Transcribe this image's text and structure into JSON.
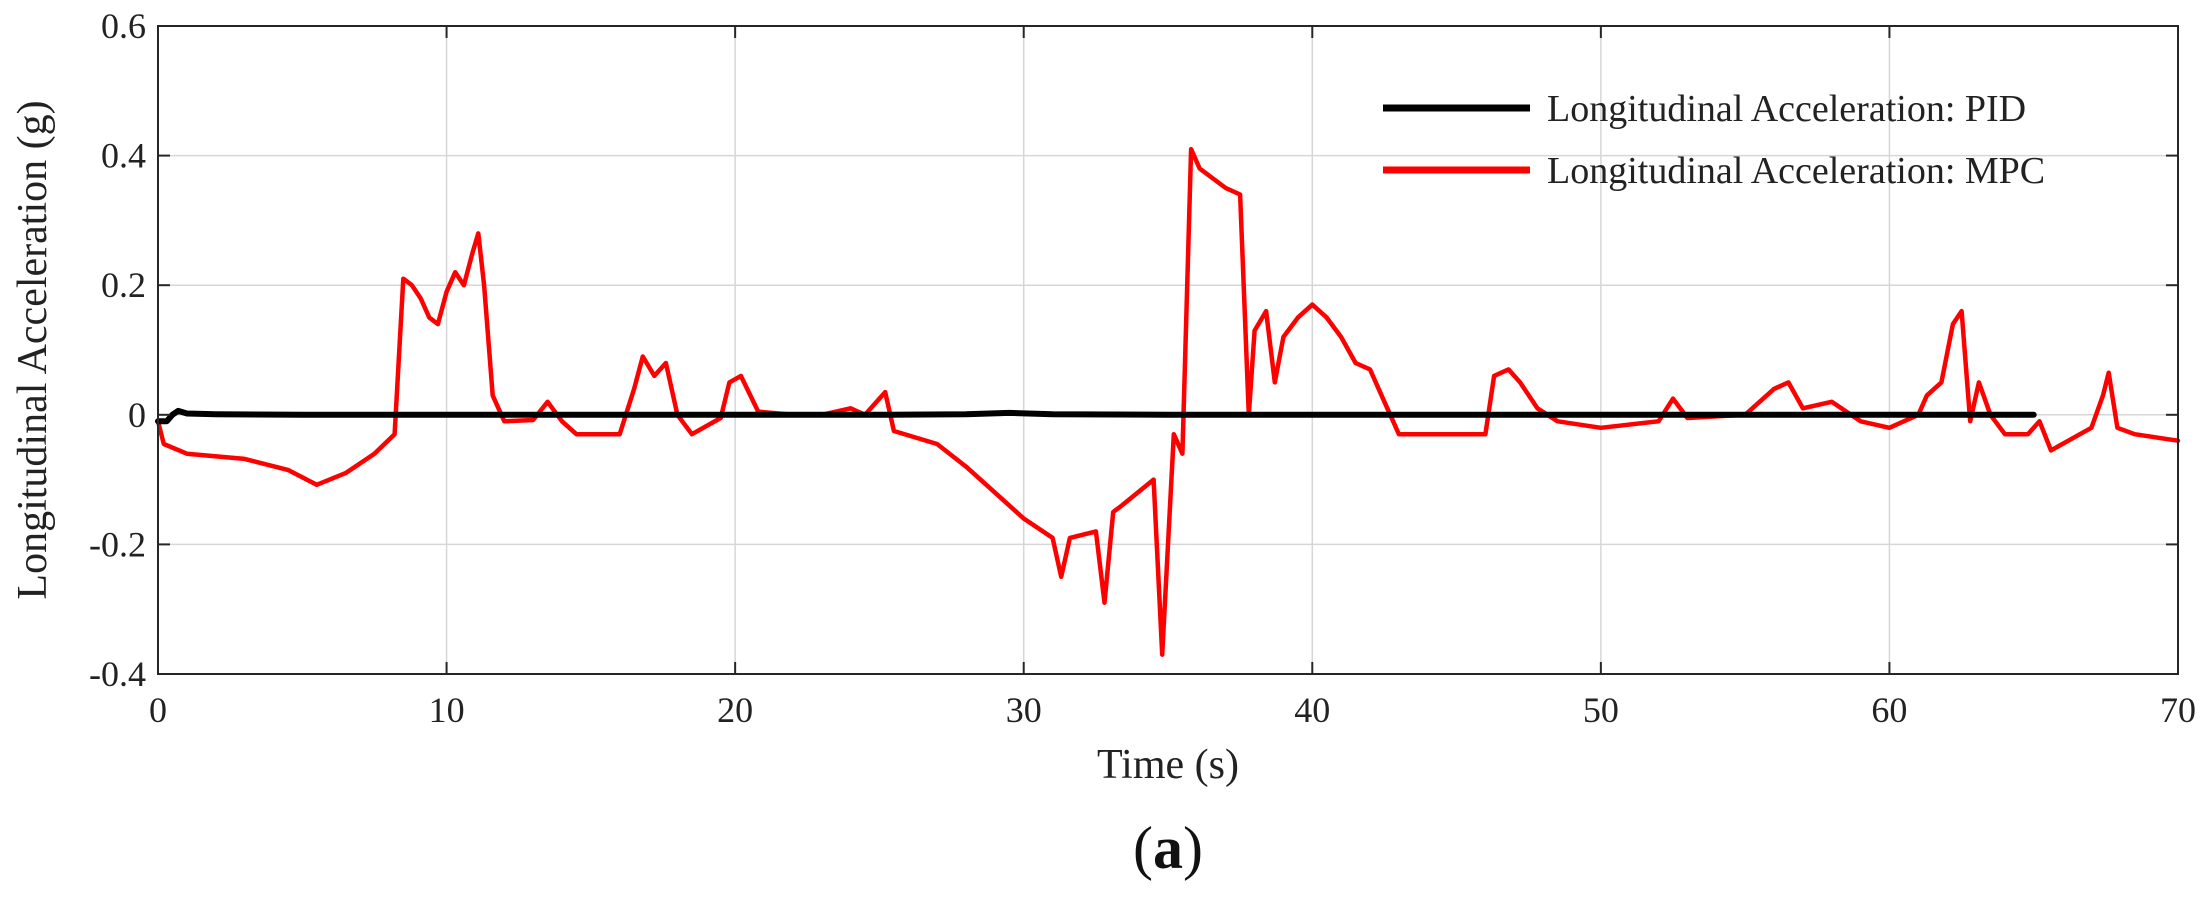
{
  "chart_data": {
    "type": "line",
    "xlabel": "Time (s)",
    "ylabel": "Longitudinal Acceleration (g)",
    "xlim": [
      0,
      70
    ],
    "ylim": [
      -0.4,
      0.6
    ],
    "xticks": [
      0,
      10,
      20,
      30,
      40,
      50,
      60,
      70
    ],
    "yticks": [
      -0.4,
      -0.2,
      0,
      0.2,
      0.4,
      0.6
    ],
    "xtick_labels": [
      "0",
      "10",
      "20",
      "30",
      "40",
      "50",
      "60",
      "70"
    ],
    "ytick_labels": [
      "-0.4",
      "-0.2",
      "0",
      "0.2",
      "0.4",
      "0.6"
    ],
    "grid": true,
    "legend_position": "top-right",
    "panel_label_open": "(",
    "panel_label_letter": "a",
    "panel_label_close": ")",
    "series": [
      {
        "name": "Longitudinal Acceleration: PID",
        "color": "#000000",
        "x": [
          0,
          0.3,
          0.5,
          0.7,
          1.0,
          2,
          5,
          10,
          20,
          25,
          28,
          29.5,
          31,
          35,
          40,
          50,
          60,
          65
        ],
        "y": [
          -0.01,
          -0.01,
          0.0,
          0.006,
          0.002,
          0.001,
          0.0,
          0.0,
          0.0,
          0.0,
          0.001,
          0.003,
          0.001,
          0.0,
          0.0,
          0.0,
          0.0,
          0.0
        ]
      },
      {
        "name": "Longitudinal Acceleration: MPC",
        "color": "#ff0000",
        "x": [
          0,
          0.2,
          1,
          3,
          4.5,
          5.5,
          6.5,
          7.5,
          8.2,
          8.5,
          8.8,
          9.1,
          9.4,
          9.7,
          10,
          10.3,
          10.6,
          10.9,
          11.1,
          11.3,
          11.6,
          12,
          13,
          13.5,
          14,
          14.5,
          16,
          16.5,
          16.8,
          17.2,
          17.6,
          18,
          18.5,
          19.5,
          19.8,
          20.2,
          20.8,
          22,
          23,
          24,
          24.5,
          25.2,
          25.5,
          27,
          28,
          29,
          30,
          31,
          31.3,
          31.6,
          32.5,
          32.8,
          33.1,
          33.4,
          34.5,
          34.8,
          35.2,
          35.5,
          35.8,
          36.1,
          37,
          37.5,
          37.8,
          38,
          38.4,
          38.7,
          39,
          39.5,
          40,
          40.5,
          41,
          41.5,
          42,
          42.5,
          43,
          46,
          46.3,
          46.8,
          47.2,
          47.8,
          48.5,
          50,
          52,
          52.5,
          53,
          55,
          56,
          56.5,
          57,
          58,
          59,
          60,
          61,
          61.3,
          61.8,
          62.2,
          62.5,
          62.8,
          63.1,
          63.5,
          64,
          64.8,
          65.2,
          65.6,
          66.2,
          67,
          67.4,
          67.6,
          67.9,
          68.5,
          70
        ],
        "y": [
          -0.01,
          -0.045,
          -0.06,
          -0.068,
          -0.085,
          -0.108,
          -0.09,
          -0.06,
          -0.03,
          0.21,
          0.2,
          0.18,
          0.15,
          0.14,
          0.19,
          0.22,
          0.2,
          0.25,
          0.28,
          0.2,
          0.03,
          -0.01,
          -0.008,
          0.02,
          -0.01,
          -0.03,
          -0.03,
          0.04,
          0.09,
          0.06,
          0.08,
          0.0,
          -0.03,
          -0.005,
          0.05,
          0.06,
          0.005,
          0.0,
          0.0,
          0.01,
          0.0,
          0.035,
          -0.025,
          -0.045,
          -0.08,
          -0.12,
          -0.16,
          -0.19,
          -0.25,
          -0.19,
          -0.18,
          -0.29,
          -0.15,
          -0.14,
          -0.1,
          -0.37,
          -0.03,
          -0.06,
          0.41,
          0.38,
          0.35,
          0.34,
          0.0,
          0.13,
          0.16,
          0.05,
          0.12,
          0.15,
          0.17,
          0.15,
          0.12,
          0.08,
          0.07,
          0.02,
          -0.03,
          -0.03,
          0.06,
          0.07,
          0.05,
          0.01,
          -0.01,
          -0.02,
          -0.01,
          0.025,
          -0.005,
          0.0,
          0.04,
          0.05,
          0.01,
          0.02,
          -0.01,
          -0.02,
          0.0,
          0.03,
          0.05,
          0.14,
          0.16,
          -0.01,
          0.05,
          0.0,
          -0.03,
          -0.03,
          -0.01,
          -0.055,
          -0.04,
          -0.02,
          0.03,
          0.065,
          -0.02,
          -0.03,
          -0.04
        ]
      }
    ]
  }
}
